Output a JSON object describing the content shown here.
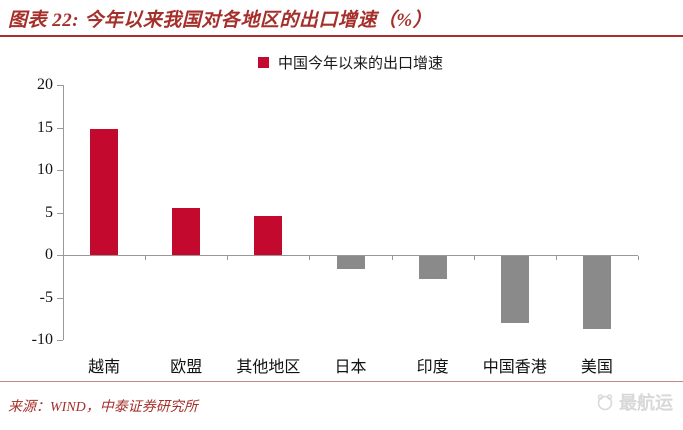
{
  "header": {
    "title": "图表 22: 今年以来我国对各地区的出口增速（%）"
  },
  "legend": {
    "label": "中国今年以来的出口增速"
  },
  "chart_data": {
    "type": "bar",
    "title": "中国今年以来的出口增速",
    "categories": [
      "越南",
      "欧盟",
      "其他地区",
      "日本",
      "印度",
      "中国香港",
      "美国"
    ],
    "values": [
      14.8,
      5.5,
      4.6,
      -1.5,
      -2.7,
      -7.9,
      -8.6
    ],
    "colors": [
      "#C3092E",
      "#C3092E",
      "#C3092E",
      "#8A8A8A",
      "#8A8A8A",
      "#8A8A8A",
      "#8A8A8A"
    ],
    "xlabel": "",
    "ylabel": "",
    "ylim": [
      -10,
      20
    ],
    "y_ticks": [
      20,
      15,
      10,
      5,
      0,
      -5,
      -10
    ],
    "grid": false,
    "legend_position": "top-center"
  },
  "footer": {
    "source": "来源：WIND，中泰证券研究所",
    "watermark": "最航运"
  },
  "colors": {
    "accent_red": "#A5302B",
    "bar_red": "#C3092E",
    "bar_gray": "#8A8A8A",
    "axis_gray": "#999999",
    "divider_pink": "#C08A80",
    "watermark_gray": "#D8D8D8"
  }
}
